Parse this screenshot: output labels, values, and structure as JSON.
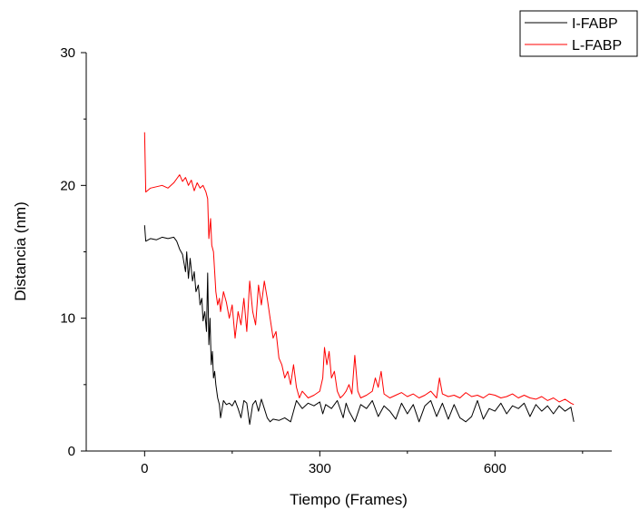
{
  "chart_data": {
    "type": "line",
    "xlabel": "Tiempo (Frames)",
    "ylabel": "Distancia (nm)",
    "xlim": [
      -100,
      800
    ],
    "ylim": [
      0,
      30
    ],
    "x_ticks": [
      0,
      300,
      600
    ],
    "x_tick_labels": [
      "0",
      "300",
      "600"
    ],
    "y_ticks": [
      0,
      10,
      20,
      30
    ],
    "y_tick_labels": [
      "0",
      "10",
      "20",
      "30"
    ],
    "grid": false,
    "legend_position": "top-right",
    "series": [
      {
        "name": "I-FABP",
        "color": "#000000",
        "points": [
          [
            0,
            17.0
          ],
          [
            2,
            15.8
          ],
          [
            10,
            16.0
          ],
          [
            20,
            15.9
          ],
          [
            30,
            16.1
          ],
          [
            40,
            16.0
          ],
          [
            50,
            16.1
          ],
          [
            55,
            15.8
          ],
          [
            60,
            15.2
          ],
          [
            65,
            14.8
          ],
          [
            70,
            13.5
          ],
          [
            72,
            15.0
          ],
          [
            75,
            13.0
          ],
          [
            78,
            14.5
          ],
          [
            82,
            12.8
          ],
          [
            85,
            13.5
          ],
          [
            88,
            12.0
          ],
          [
            92,
            12.5
          ],
          [
            95,
            11.0
          ],
          [
            98,
            11.5
          ],
          [
            100,
            9.8
          ],
          [
            103,
            10.5
          ],
          [
            106,
            9.0
          ],
          [
            108,
            13.4
          ],
          [
            110,
            8.0
          ],
          [
            112,
            10.0
          ],
          [
            114,
            6.5
          ],
          [
            116,
            7.5
          ],
          [
            118,
            5.5
          ],
          [
            120,
            6.0
          ],
          [
            122,
            5.0
          ],
          [
            125,
            4.0
          ],
          [
            128,
            3.5
          ],
          [
            130,
            2.5
          ],
          [
            135,
            3.8
          ],
          [
            140,
            3.5
          ],
          [
            145,
            3.6
          ],
          [
            150,
            3.4
          ],
          [
            155,
            3.8
          ],
          [
            160,
            3.2
          ],
          [
            165,
            2.5
          ],
          [
            170,
            3.8
          ],
          [
            175,
            3.6
          ],
          [
            180,
            2.0
          ],
          [
            185,
            3.5
          ],
          [
            190,
            3.8
          ],
          [
            195,
            3.0
          ],
          [
            200,
            3.9
          ],
          [
            205,
            3.2
          ],
          [
            210,
            2.5
          ],
          [
            215,
            2.2
          ],
          [
            220,
            2.4
          ],
          [
            230,
            2.3
          ],
          [
            240,
            2.5
          ],
          [
            250,
            2.2
          ],
          [
            255,
            3.0
          ],
          [
            260,
            3.8
          ],
          [
            270,
            3.2
          ],
          [
            280,
            3.6
          ],
          [
            290,
            3.4
          ],
          [
            300,
            3.7
          ],
          [
            305,
            2.8
          ],
          [
            310,
            3.5
          ],
          [
            320,
            3.2
          ],
          [
            330,
            3.8
          ],
          [
            340,
            2.5
          ],
          [
            345,
            3.6
          ],
          [
            350,
            3.0
          ],
          [
            360,
            2.2
          ],
          [
            370,
            3.5
          ],
          [
            380,
            3.2
          ],
          [
            390,
            3.8
          ],
          [
            400,
            2.6
          ],
          [
            410,
            3.4
          ],
          [
            420,
            3.0
          ],
          [
            430,
            2.4
          ],
          [
            440,
            3.6
          ],
          [
            450,
            2.8
          ],
          [
            460,
            3.5
          ],
          [
            470,
            2.2
          ],
          [
            480,
            3.4
          ],
          [
            490,
            3.8
          ],
          [
            500,
            2.6
          ],
          [
            510,
            3.6
          ],
          [
            520,
            2.4
          ],
          [
            530,
            3.5
          ],
          [
            540,
            2.5
          ],
          [
            550,
            2.2
          ],
          [
            560,
            2.6
          ],
          [
            570,
            3.8
          ],
          [
            580,
            2.4
          ],
          [
            590,
            3.2
          ],
          [
            600,
            3.0
          ],
          [
            610,
            3.6
          ],
          [
            620,
            2.8
          ],
          [
            630,
            3.4
          ],
          [
            640,
            3.2
          ],
          [
            650,
            3.6
          ],
          [
            660,
            2.6
          ],
          [
            670,
            3.5
          ],
          [
            680,
            3.0
          ],
          [
            690,
            3.4
          ],
          [
            700,
            2.8
          ],
          [
            710,
            3.4
          ],
          [
            720,
            3.0
          ],
          [
            730,
            3.3
          ],
          [
            735,
            2.2
          ]
        ]
      },
      {
        "name": "L-FABP",
        "color": "#ff0000",
        "points": [
          [
            0,
            24.0
          ],
          [
            2,
            19.5
          ],
          [
            10,
            19.8
          ],
          [
            20,
            19.9
          ],
          [
            30,
            20.0
          ],
          [
            40,
            19.8
          ],
          [
            50,
            20.2
          ],
          [
            55,
            20.5
          ],
          [
            60,
            20.8
          ],
          [
            65,
            20.3
          ],
          [
            70,
            20.6
          ],
          [
            75,
            20.0
          ],
          [
            80,
            20.4
          ],
          [
            85,
            19.6
          ],
          [
            90,
            20.2
          ],
          [
            95,
            19.8
          ],
          [
            100,
            20.0
          ],
          [
            105,
            19.5
          ],
          [
            108,
            19.0
          ],
          [
            110,
            16.0
          ],
          [
            113,
            17.5
          ],
          [
            115,
            15.5
          ],
          [
            118,
            15.0
          ],
          [
            120,
            13.5
          ],
          [
            122,
            12.0
          ],
          [
            125,
            11.0
          ],
          [
            128,
            11.5
          ],
          [
            130,
            10.5
          ],
          [
            135,
            12.0
          ],
          [
            140,
            11.2
          ],
          [
            145,
            10.0
          ],
          [
            150,
            11.0
          ],
          [
            155,
            8.5
          ],
          [
            160,
            10.5
          ],
          [
            165,
            9.5
          ],
          [
            170,
            11.5
          ],
          [
            175,
            9.0
          ],
          [
            180,
            12.8
          ],
          [
            185,
            10.5
          ],
          [
            190,
            9.5
          ],
          [
            195,
            12.5
          ],
          [
            200,
            11.0
          ],
          [
            205,
            12.8
          ],
          [
            210,
            11.5
          ],
          [
            215,
            10.0
          ],
          [
            220,
            8.5
          ],
          [
            225,
            9.0
          ],
          [
            230,
            7.0
          ],
          [
            235,
            6.5
          ],
          [
            240,
            5.5
          ],
          [
            245,
            6.0
          ],
          [
            250,
            5.0
          ],
          [
            255,
            6.5
          ],
          [
            260,
            4.8
          ],
          [
            265,
            4.0
          ],
          [
            270,
            4.5
          ],
          [
            280,
            4.0
          ],
          [
            290,
            4.2
          ],
          [
            300,
            4.5
          ],
          [
            305,
            5.5
          ],
          [
            308,
            7.8
          ],
          [
            312,
            6.5
          ],
          [
            316,
            7.5
          ],
          [
            320,
            5.5
          ],
          [
            325,
            6.0
          ],
          [
            330,
            4.5
          ],
          [
            335,
            4.0
          ],
          [
            340,
            4.2
          ],
          [
            345,
            4.5
          ],
          [
            350,
            5.0
          ],
          [
            355,
            4.3
          ],
          [
            360,
            7.2
          ],
          [
            365,
            4.5
          ],
          [
            370,
            4.0
          ],
          [
            380,
            4.2
          ],
          [
            390,
            4.5
          ],
          [
            395,
            5.5
          ],
          [
            400,
            4.8
          ],
          [
            405,
            6.0
          ],
          [
            410,
            4.3
          ],
          [
            420,
            4.0
          ],
          [
            430,
            4.2
          ],
          [
            440,
            4.4
          ],
          [
            450,
            4.1
          ],
          [
            460,
            4.3
          ],
          [
            470,
            4.0
          ],
          [
            480,
            4.2
          ],
          [
            490,
            4.5
          ],
          [
            500,
            4.0
          ],
          [
            505,
            5.5
          ],
          [
            510,
            4.3
          ],
          [
            520,
            4.1
          ],
          [
            530,
            4.2
          ],
          [
            540,
            4.0
          ],
          [
            550,
            4.4
          ],
          [
            560,
            4.1
          ],
          [
            570,
            4.2
          ],
          [
            580,
            4.0
          ],
          [
            590,
            4.3
          ],
          [
            600,
            4.2
          ],
          [
            610,
            4.0
          ],
          [
            620,
            4.1
          ],
          [
            630,
            4.3
          ],
          [
            640,
            4.0
          ],
          [
            650,
            4.2
          ],
          [
            660,
            4.0
          ],
          [
            670,
            3.9
          ],
          [
            680,
            4.1
          ],
          [
            690,
            3.8
          ],
          [
            700,
            4.0
          ],
          [
            710,
            3.7
          ],
          [
            720,
            3.9
          ],
          [
            730,
            3.6
          ],
          [
            735,
            3.5
          ]
        ]
      }
    ]
  }
}
